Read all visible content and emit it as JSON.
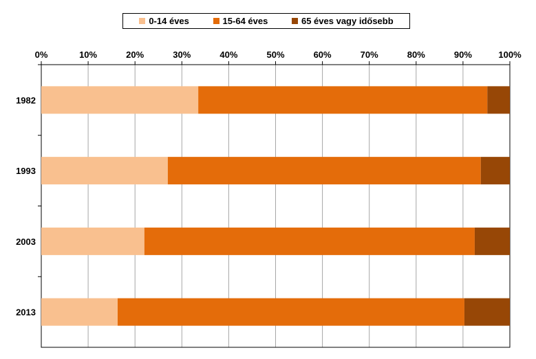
{
  "chart_data": {
    "type": "bar",
    "orientation": "horizontal",
    "stacked": "percent",
    "categories": [
      "1982",
      "1993",
      "2003",
      "2013"
    ],
    "series": [
      {
        "name": "0-14 éves",
        "color": "#F9C08F",
        "values": [
          33.5,
          27,
          22,
          16.3
        ]
      },
      {
        "name": "15-64 éves",
        "color": "#E46C0A",
        "values": [
          61.7,
          66.8,
          70.5,
          74
        ]
      },
      {
        "name": "65 éves vagy idősebb",
        "color": "#974706",
        "values": [
          4.8,
          6.2,
          7.5,
          9.7
        ]
      }
    ],
    "xlim": [
      0,
      100
    ],
    "x_ticks": [
      "0%",
      "10%",
      "20%",
      "30%",
      "40%",
      "50%",
      "60%",
      "70%",
      "80%",
      "90%",
      "100%"
    ],
    "grid": "vertical",
    "legend_position": "top",
    "xaxis_position": "top"
  }
}
